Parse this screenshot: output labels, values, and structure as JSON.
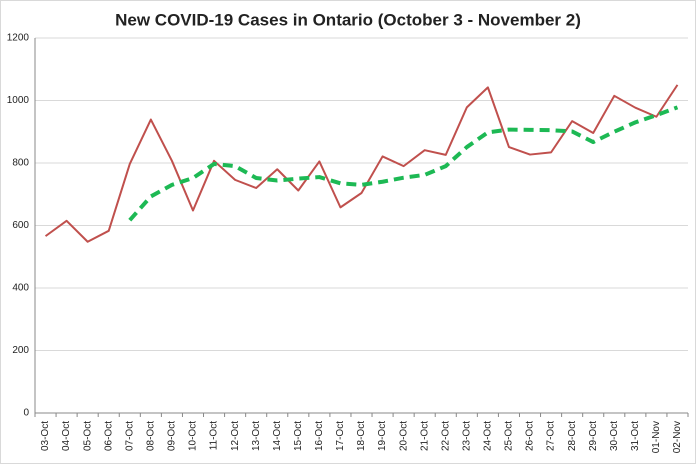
{
  "chart_data": {
    "type": "line",
    "title": "New COVID-19 Cases in Ontario (October 3 - November 2)",
    "categories": [
      "03-Oct",
      "04-Oct",
      "05-Oct",
      "06-Oct",
      "07-Oct",
      "08-Oct",
      "09-Oct",
      "10-Oct",
      "11-Oct",
      "12-Oct",
      "13-Oct",
      "14-Oct",
      "15-Oct",
      "16-Oct",
      "17-Oct",
      "18-Oct",
      "19-Oct",
      "20-Oct",
      "21-Oct",
      "22-Oct",
      "23-Oct",
      "24-Oct",
      "25-Oct",
      "26-Oct",
      "27-Oct",
      "28-Oct",
      "29-Oct",
      "30-Oct",
      "31-Oct",
      "01-Nov",
      "02-Nov"
    ],
    "series": [
      {
        "color": "#c0504d",
        "dashed": false,
        "values": [
          566,
          615,
          548,
          583,
          797,
          939,
          807,
          648,
          807,
          746,
          720,
          780,
          712,
          805,
          658,
          704,
          821,
          790,
          841,
          826,
          978,
          1042,
          851,
          827,
          834,
          934,
          896,
          1015,
          977,
          948,
          1050
        ]
      },
      {
        "color": "#1db954",
        "dashed": true,
        "values": [
          null,
          null,
          null,
          null,
          617,
          693,
          730,
          752,
          797,
          790,
          752,
          744,
          750,
          755,
          735,
          730,
          740,
          753,
          762,
          790,
          851,
          898,
          907,
          906,
          905,
          901,
          867,
          900,
          930,
          953,
          978
        ]
      }
    ],
    "ylim": [
      0,
      1200
    ],
    "yticks": [
      0,
      200,
      400,
      600,
      800,
      1000,
      1200
    ],
    "grid": true
  }
}
